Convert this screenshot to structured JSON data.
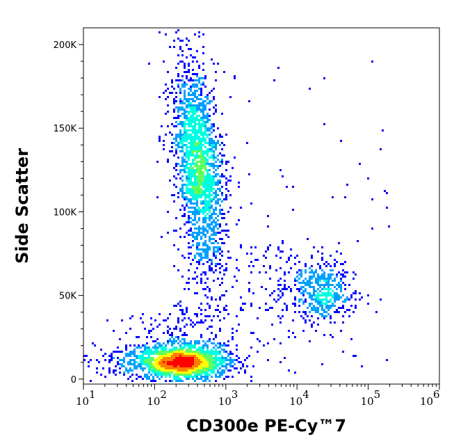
{
  "chart_data": {
    "type": "scatter",
    "subtype": "flow-cytometry-density-dot-plot",
    "xlabel": "CD300e PE-Cy™7",
    "ylabel": "Side Scatter",
    "xscale": "log",
    "xlim": [
      10,
      1000000
    ],
    "ylim": [
      -3000,
      210000
    ],
    "x_ticks": [
      {
        "exp": "1",
        "value": 10
      },
      {
        "exp": "2",
        "value": 100
      },
      {
        "exp": "3",
        "value": 1000
      },
      {
        "exp": "4",
        "value": 10000
      },
      {
        "exp": "5",
        "value": 100000
      },
      {
        "exp": "6",
        "value": 1000000
      }
    ],
    "x_tick_base": "10",
    "y_ticks": [
      {
        "label": "0",
        "value": 0
      },
      {
        "label": "50K",
        "value": 50000
      },
      {
        "label": "100K",
        "value": 100000
      },
      {
        "label": "150K",
        "value": 150000
      },
      {
        "label": "200K",
        "value": 200000
      }
    ],
    "colormap": [
      "#0000ff",
      "#00a0ff",
      "#00ffe0",
      "#60ff60",
      "#ffff00",
      "#ff8000",
      "#ff0000"
    ],
    "populations": [
      {
        "name": "low SSC CD300e-negative",
        "x_center": 250,
        "x_log_sd": 0.3,
        "y_center": 10000,
        "y_sd": 5000,
        "events": 2200
      },
      {
        "name": "high SSC CD300e-dim",
        "x_center": 420,
        "x_log_sd": 0.16,
        "y_center": 130000,
        "y_sd": 28000,
        "events": 2000
      },
      {
        "name": "CD300e-positive",
        "x_center": 25000,
        "x_log_sd": 0.2,
        "y_center": 53000,
        "y_sd": 10000,
        "events": 550
      },
      {
        "name": "scattered events",
        "events": 260
      }
    ]
  }
}
